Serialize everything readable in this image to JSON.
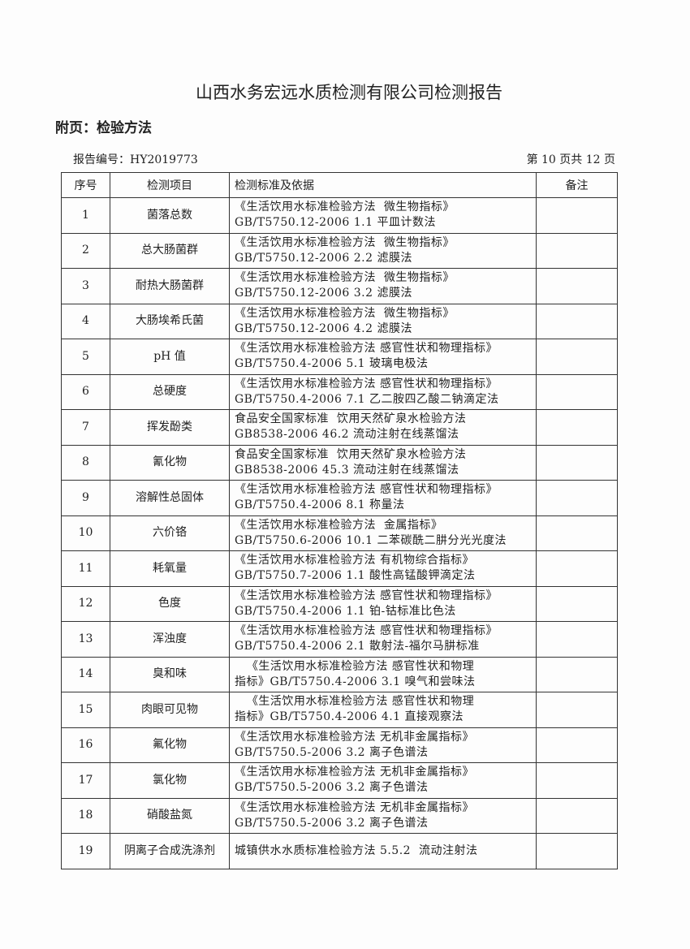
{
  "title": "山西水务宏远水质检测有限公司检测报告",
  "subtitle": "附页：检验方法",
  "report_no": "报告编号：HY2019773",
  "page_info": "第 10 页共 12 页",
  "headers": [
    "序号",
    "检测项目",
    "检测标准及依据",
    "备注"
  ],
  "rows": [
    {
      "no": "1",
      "item": "菌落总数",
      "l1": "《生活饮用水标准检验方法  微生物指标》",
      "l2": "GB/T5750.12-2006  1.1 平皿计数法",
      "note": ""
    },
    {
      "no": "2",
      "item": "总大肠菌群",
      "l1": "《生活饮用水标准检验方法  微生物指标》",
      "l2": "GB/T5750.12-2006  2.2 滤膜法",
      "note": ""
    },
    {
      "no": "3",
      "item": "耐热大肠菌群",
      "l1": "《生活饮用水标准检验方法  微生物指标》",
      "l2": "GB/T5750.12-2006  3.2 滤膜法",
      "note": ""
    },
    {
      "no": "4",
      "item": "大肠埃希氏菌",
      "l1": "《生活饮用水标准检验方法  微生物指标》",
      "l2": "GB/T5750.12-2006  4.2 滤膜法",
      "note": ""
    },
    {
      "no": "5",
      "item": "pH 值",
      "l1": "《生活饮用水标准检验方法 感官性状和物理指标》",
      "l2": "GB/T5750.4-2006  5.1 玻璃电极法",
      "note": ""
    },
    {
      "no": "6",
      "item": "总硬度",
      "l1": "《生活饮用水标准检验方法 感官性状和物理指标》",
      "l2": "GB/T5750.4-2006  7.1 乙二胺四乙酸二钠滴定法",
      "note": ""
    },
    {
      "no": "7",
      "item": "挥发酚类",
      "l1": "食品安全国家标准  饮用天然矿泉水检验方法",
      "l2": "GB8538-2006  46.2 流动注射在线蒸馏法",
      "note": ""
    },
    {
      "no": "8",
      "item": "氰化物",
      "l1": "食品安全国家标准  饮用天然矿泉水检验方法",
      "l2": "GB8538-2006  45.3 流动注射在线蒸馏法",
      "note": ""
    },
    {
      "no": "9",
      "item": "溶解性总固体",
      "l1": "《生活饮用水标准检验方法 感官性状和物理指标》",
      "l2": "GB/T5750.4-2006  8.1 称量法",
      "note": ""
    },
    {
      "no": "10",
      "item": "六价铬",
      "l1": "《生活饮用水标准检验方法  金属指标》",
      "l2": "GB/T5750.6-2006  10.1 二苯碳酰二肼分光光度法",
      "note": ""
    },
    {
      "no": "11",
      "item": "耗氧量",
      "l1": "《生活饮用水标准检验方法 有机物综合指标》",
      "l2": "GB/T5750.7-2006  1.1 酸性高锰酸钾滴定法",
      "note": ""
    },
    {
      "no": "12",
      "item": "色度",
      "l1": "《生活饮用水标准检验方法 感官性状和物理指标》",
      "l2": "GB/T5750.4-2006  1.1 铂-钴标准比色法",
      "note": ""
    },
    {
      "no": "13",
      "item": "浑浊度",
      "l1": "《生活饮用水标准检验方法 感官性状和物理指标》",
      "l2": "GB/T5750.4-2006  2.1 散射法-福尔马肼标准",
      "note": ""
    },
    {
      "no": "14",
      "item": "臭和味",
      "l1": "   《生活饮用水标准检验方法 感官性状和物理",
      "l2": "指标》GB/T5750.4-2006 3.1 嗅气和尝味法",
      "note": ""
    },
    {
      "no": "15",
      "item": "肉眼可见物",
      "l1": "   《生活饮用水标准检验方法 感官性状和物理",
      "l2": "指标》GB/T5750.4-2006 4.1 直接观察法",
      "note": ""
    },
    {
      "no": "16",
      "item": "氟化物",
      "l1": "《生活饮用水标准检验方法 无机非金属指标》",
      "l2": "GB/T5750.5-2006  3.2 离子色谱法",
      "note": ""
    },
    {
      "no": "17",
      "item": "氯化物",
      "l1": "《生活饮用水标准检验方法 无机非金属指标》",
      "l2": "GB/T5750.5-2006  3.2 离子色谱法",
      "note": ""
    },
    {
      "no": "18",
      "item": "硝酸盐氮",
      "l1": "《生活饮用水标准检验方法 无机非金属指标》",
      "l2": "GB/T5750.5-2006  3.2 离子色谱法",
      "note": ""
    },
    {
      "no": "19",
      "item": "阴离子合成洗涤剂",
      "l1": "城镇供水水质标准检验方法 5.5.2  流动注射法",
      "l2": "",
      "note": ""
    }
  ]
}
